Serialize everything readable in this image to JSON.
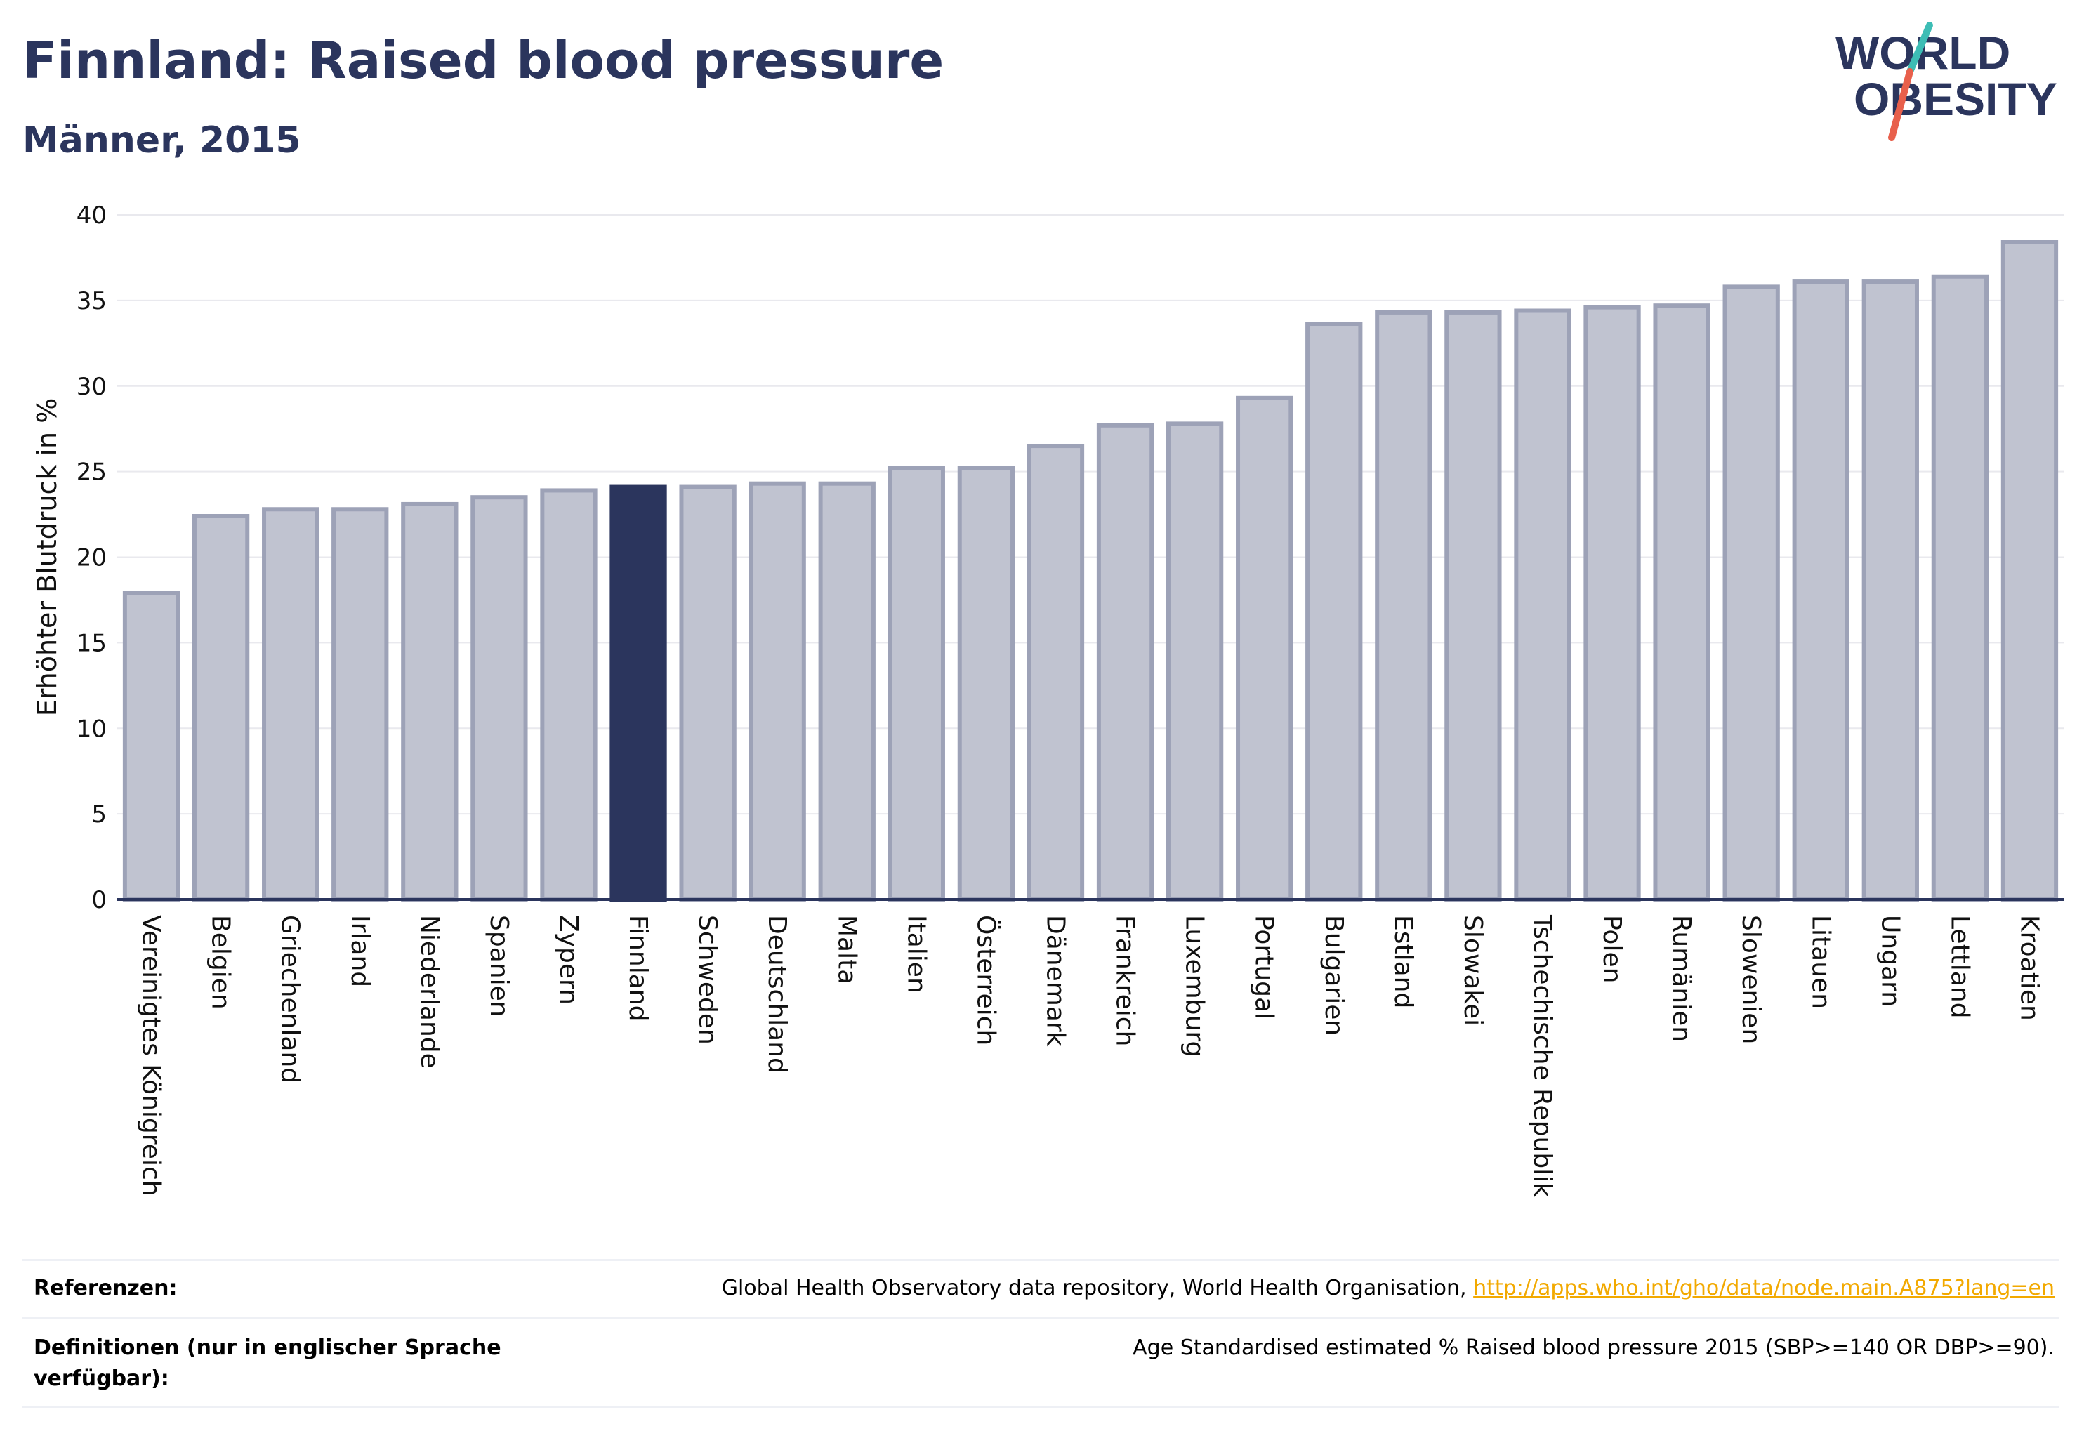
{
  "header": {
    "title": "Finnland: Raised blood pressure",
    "subtitle": "Männer, 2015"
  },
  "logo": {
    "line1": "WORLD",
    "line2": "OBESITY",
    "colors": {
      "text": "#2b355d",
      "slash_red": "#e8604c",
      "slash_teal": "#3dbdb5"
    }
  },
  "chart_data": {
    "type": "bar",
    "title": "Finnland: Raised blood pressure",
    "subtitle": "Männer, 2015",
    "xlabel": "",
    "ylabel": "Erhöhter Blutdruck in %",
    "ylim": [
      0,
      40
    ],
    "yticks": [
      0,
      5,
      10,
      15,
      20,
      25,
      30,
      35,
      40
    ],
    "grid": true,
    "highlight": "Finnland",
    "colors": {
      "bar": "#c0c3d0",
      "bar_border": "#9da2b7",
      "highlight": "#2b355d",
      "grid": "#e9e9ee",
      "axis": "#2b355d"
    },
    "categories": [
      "Vereinigtes Königreich",
      "Belgien",
      "Griechenland",
      "Irland",
      "Niederlande",
      "Spanien",
      "Zypern",
      "Finnland",
      "Schweden",
      "Deutschland",
      "Malta",
      "Italien",
      "Österreich",
      "Dänemark",
      "Frankreich",
      "Luxemburg",
      "Portugal",
      "Bulgarien",
      "Estland",
      "Slowakei",
      "Tschechische Republik",
      "Polen",
      "Rumänien",
      "Slowenien",
      "Litauen",
      "Ungarn",
      "Lettland",
      "Kroatien"
    ],
    "values": [
      17.9,
      22.4,
      22.8,
      22.8,
      23.1,
      23.5,
      23.9,
      24.1,
      24.1,
      24.3,
      24.3,
      25.2,
      25.2,
      26.5,
      27.7,
      27.8,
      29.3,
      33.6,
      34.3,
      34.3,
      34.4,
      34.6,
      34.7,
      35.8,
      36.1,
      36.1,
      36.4,
      38.4
    ]
  },
  "footer": {
    "references_label": "Referenzen:",
    "references_text": "Global Health Observatory data repository, World Health Organisation,",
    "references_link": "http://apps.who.int/gho/data/node.main.A875?lang=en",
    "definitions_label": "Definitionen (nur in englischer Sprache verfügbar):",
    "definitions_text": "Age Standardised estimated % Raised blood pressure 2015 (SBP>=140 OR DBP>=90)."
  }
}
